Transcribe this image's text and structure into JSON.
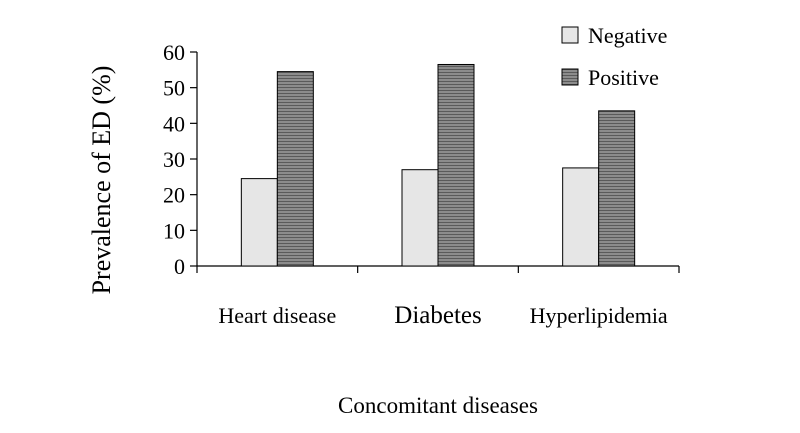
{
  "chart_data": {
    "type": "bar",
    "title": "",
    "xlabel": "Concomitant diseases",
    "ylabel": "Prevalence of ED (%)",
    "categories": [
      "Heart disease",
      "Diabetes",
      "Hyperlipidemia"
    ],
    "series": [
      {
        "name": "Negative",
        "values": [
          24.5,
          27,
          27.5
        ],
        "color": "#e6e6e6"
      },
      {
        "name": "Positive",
        "values": [
          54.5,
          56.5,
          43.5
        ],
        "color": "#7a7a7a"
      }
    ],
    "ylim": [
      0,
      60
    ],
    "yticks": [
      "0",
      "10",
      "20",
      "30",
      "40",
      "50",
      "60"
    ],
    "grid": false,
    "legend_position": "top-right"
  }
}
